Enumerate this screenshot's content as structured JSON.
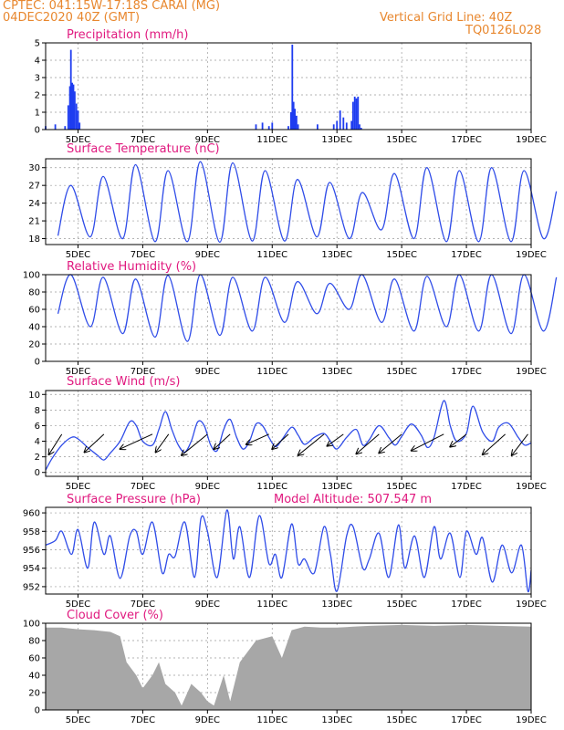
{
  "header": {
    "source_line": "CPTEC:   041:15W-17:18S   CARAI (MG)",
    "date_line": "04DEC2020 40Z (GMT)",
    "grid_line": "Vertical Grid Line: 40Z",
    "code": "TQ0126L028"
  },
  "colors": {
    "header": "#e8872e",
    "title": "#e0197f",
    "line": "#2f4ce8",
    "bar": "#1e3cf0",
    "cloud": "#a7a7a7",
    "arrow": "#000000"
  },
  "chart_data": [
    {
      "type": "bar",
      "title": "Precipitation (mm/h)",
      "xlabel": "",
      "ylabel": "",
      "ylim": [
        0,
        5
      ],
      "yticks": [
        0,
        1,
        2,
        3,
        4,
        5
      ],
      "x_ticks": [
        "5DEC",
        "7DEC",
        "9DEC",
        "11DEC",
        "13DEC",
        "15DEC",
        "17DEC",
        "19DEC"
      ],
      "x_range_days": [
        4.0,
        19.0
      ],
      "points": [
        [
          4.0,
          0.2
        ],
        [
          4.3,
          0.3
        ],
        [
          4.6,
          0.2
        ],
        [
          4.7,
          1.4
        ],
        [
          4.75,
          2.5
        ],
        [
          4.78,
          4.6
        ],
        [
          4.82,
          2.7
        ],
        [
          4.86,
          2.6
        ],
        [
          4.9,
          2.2
        ],
        [
          4.95,
          1.5
        ],
        [
          5.0,
          1.1
        ],
        [
          5.05,
          0.4
        ],
        [
          10.5,
          0.3
        ],
        [
          10.7,
          0.4
        ],
        [
          10.9,
          0.2
        ],
        [
          11.0,
          0.4
        ],
        [
          11.5,
          0.2
        ],
        [
          11.58,
          1.0
        ],
        [
          11.62,
          4.9
        ],
        [
          11.66,
          1.6
        ],
        [
          11.7,
          1.2
        ],
        [
          11.75,
          0.8
        ],
        [
          11.8,
          0.3
        ],
        [
          12.4,
          0.3
        ],
        [
          12.9,
          0.3
        ],
        [
          13.0,
          0.5
        ],
        [
          13.1,
          1.1
        ],
        [
          13.2,
          0.7
        ],
        [
          13.3,
          0.4
        ],
        [
          13.45,
          0.5
        ],
        [
          13.5,
          1.6
        ],
        [
          13.55,
          1.9
        ],
        [
          13.6,
          1.8
        ],
        [
          13.65,
          1.9
        ],
        [
          13.7,
          0.3
        ],
        [
          13.75,
          0.1
        ]
      ]
    },
    {
      "type": "line",
      "title": "Surface Temperature (nC)",
      "xlabel": "",
      "ylabel": "",
      "ylim": [
        17,
        31.5
      ],
      "yticks": [
        18,
        21,
        24,
        27,
        30
      ],
      "x_ticks": [
        "5DEC",
        "7DEC",
        "9DEC",
        "11DEC",
        "13DEC",
        "15DEC",
        "17DEC",
        "19DEC"
      ],
      "x_range_days": [
        4.0,
        19.0
      ],
      "daily_min": [
        18.5,
        18.3,
        18.0,
        17.5,
        17.5,
        17.4,
        17.6,
        17.6,
        18.3,
        18.0,
        19.5,
        18.0,
        17.5,
        17.5,
        17.5,
        18.0
      ],
      "daily_max": [
        27.0,
        28.5,
        30.5,
        29.5,
        31.0,
        30.8,
        29.5,
        28.0,
        27.5,
        25.8,
        29.0,
        30.0,
        29.5,
        30.0,
        29.5,
        26.0
      ]
    },
    {
      "type": "line",
      "title": "Relative Humidity (%)",
      "xlabel": "",
      "ylabel": "",
      "ylim": [
        0,
        100
      ],
      "yticks": [
        0,
        20,
        40,
        60,
        80,
        100
      ],
      "x_ticks": [
        "5DEC",
        "7DEC",
        "9DEC",
        "11DEC",
        "13DEC",
        "15DEC",
        "17DEC",
        "19DEC"
      ],
      "x_range_days": [
        4.0,
        19.0
      ],
      "daily_min": [
        55,
        40,
        32,
        28,
        23,
        30,
        35,
        45,
        55,
        60,
        45,
        35,
        40,
        35,
        32,
        35
      ],
      "daily_max": [
        100,
        97,
        95,
        99,
        100,
        97,
        97,
        92,
        90,
        100,
        95,
        98,
        100,
        100,
        100,
        97
      ]
    },
    {
      "type": "line",
      "title": "Surface Wind (m/s)",
      "xlabel": "",
      "ylabel": "",
      "ylim": [
        -0.5,
        10.5
      ],
      "yticks": [
        0,
        2,
        4,
        6,
        8,
        10
      ],
      "x_ticks": [
        "5DEC",
        "7DEC",
        "9DEC",
        "11DEC",
        "13DEC",
        "15DEC",
        "17DEC",
        "19DEC"
      ],
      "x_range_days": [
        4.0,
        19.0
      ],
      "speed": [
        [
          4.0,
          0.3
        ],
        [
          4.2,
          1.8
        ],
        [
          4.5,
          3.5
        ],
        [
          4.8,
          4.5
        ],
        [
          5.0,
          4.3
        ],
        [
          5.3,
          3.2
        ],
        [
          5.6,
          2.2
        ],
        [
          5.8,
          1.6
        ],
        [
          6.0,
          2.5
        ],
        [
          6.3,
          4.0
        ],
        [
          6.6,
          6.5
        ],
        [
          6.8,
          6.0
        ],
        [
          7.0,
          4.0
        ],
        [
          7.3,
          3.5
        ],
        [
          7.5,
          5.5
        ],
        [
          7.7,
          7.8
        ],
        [
          7.9,
          5.5
        ],
        [
          8.1,
          3.5
        ],
        [
          8.3,
          2.6
        ],
        [
          8.5,
          4.0
        ],
        [
          8.7,
          6.5
        ],
        [
          8.9,
          6.0
        ],
        [
          9.1,
          3.5
        ],
        [
          9.3,
          2.8
        ],
        [
          9.5,
          5.5
        ],
        [
          9.7,
          6.8
        ],
        [
          9.9,
          4.5
        ],
        [
          10.1,
          3.0
        ],
        [
          10.3,
          4.0
        ],
        [
          10.5,
          6.2
        ],
        [
          10.7,
          6.0
        ],
        [
          10.9,
          4.5
        ],
        [
          11.1,
          3.3
        ],
        [
          11.3,
          4.2
        ],
        [
          11.6,
          5.8
        ],
        [
          11.8,
          4.8
        ],
        [
          12.0,
          3.6
        ],
        [
          12.3,
          4.5
        ],
        [
          12.6,
          5.0
        ],
        [
          12.8,
          4.0
        ],
        [
          13.0,
          3.0
        ],
        [
          13.3,
          4.5
        ],
        [
          13.6,
          5.5
        ],
        [
          13.8,
          3.5
        ],
        [
          14.0,
          4.2
        ],
        [
          14.3,
          6.0
        ],
        [
          14.6,
          4.5
        ],
        [
          14.8,
          3.5
        ],
        [
          15.0,
          4.6
        ],
        [
          15.3,
          6.2
        ],
        [
          15.6,
          4.8
        ],
        [
          15.8,
          3.2
        ],
        [
          16.0,
          4.5
        ],
        [
          16.3,
          9.2
        ],
        [
          16.5,
          6.0
        ],
        [
          16.7,
          4.0
        ],
        [
          17.0,
          5.0
        ],
        [
          17.2,
          8.5
        ],
        [
          17.5,
          5.2
        ],
        [
          17.8,
          4.0
        ],
        [
          18.0,
          5.8
        ],
        [
          18.3,
          6.3
        ],
        [
          18.6,
          4.5
        ],
        [
          18.8,
          3.5
        ],
        [
          19.0,
          3.8
        ]
      ],
      "wind_arrows_from_to": [
        [
          4.5,
          4.9,
          4.1,
          2.3
        ],
        [
          5.8,
          4.9,
          5.2,
          2.6
        ],
        [
          7.3,
          4.9,
          6.3,
          3.0
        ],
        [
          7.8,
          4.9,
          7.4,
          2.6
        ],
        [
          9.0,
          4.9,
          8.2,
          2.2
        ],
        [
          9.7,
          4.9,
          9.2,
          3.0
        ],
        [
          10.9,
          4.9,
          10.2,
          3.6
        ],
        [
          11.5,
          4.9,
          11.0,
          3.0
        ],
        [
          12.6,
          4.9,
          11.8,
          2.2
        ],
        [
          13.2,
          4.9,
          12.7,
          3.4
        ],
        [
          14.3,
          4.9,
          13.6,
          2.4
        ],
        [
          15.0,
          4.9,
          14.3,
          2.5
        ],
        [
          16.3,
          4.9,
          15.3,
          2.8
        ],
        [
          17.0,
          4.9,
          16.5,
          3.3
        ],
        [
          18.2,
          4.9,
          17.5,
          2.3
        ],
        [
          18.9,
          4.9,
          18.4,
          2.2
        ]
      ]
    },
    {
      "type": "line",
      "title": "Surface Pressure (hPa)",
      "annotation": "Model Altitude: 507.547 m",
      "xlabel": "",
      "ylabel": "",
      "ylim": [
        951.2,
        960.6
      ],
      "yticks": [
        952,
        954,
        956,
        958,
        960
      ],
      "x_ticks": [
        "5DEC",
        "7DEC",
        "9DEC",
        "11DEC",
        "13DEC",
        "15DEC",
        "17DEC",
        "19DEC"
      ],
      "x_range_days": [
        4.0,
        19.0
      ],
      "points": [
        [
          4.0,
          956.5
        ],
        [
          4.3,
          957.0
        ],
        [
          4.5,
          958.0
        ],
        [
          4.8,
          955.5
        ],
        [
          5.0,
          958.2
        ],
        [
          5.3,
          954.0
        ],
        [
          5.5,
          959.0
        ],
        [
          5.8,
          955.5
        ],
        [
          6.0,
          957.5
        ],
        [
          6.3,
          952.9
        ],
        [
          6.6,
          957.5
        ],
        [
          6.8,
          958.0
        ],
        [
          7.0,
          955.5
        ],
        [
          7.3,
          959.0
        ],
        [
          7.6,
          953.5
        ],
        [
          7.8,
          955.5
        ],
        [
          8.0,
          955.3
        ],
        [
          8.3,
          959.0
        ],
        [
          8.6,
          953.0
        ],
        [
          8.8,
          959.4
        ],
        [
          9.0,
          958.0
        ],
        [
          9.3,
          953.0
        ],
        [
          9.6,
          960.3
        ],
        [
          9.8,
          955.0
        ],
        [
          10.0,
          958.5
        ],
        [
          10.3,
          953.0
        ],
        [
          10.6,
          959.7
        ],
        [
          10.9,
          954.5
        ],
        [
          11.1,
          955.5
        ],
        [
          11.3,
          953.0
        ],
        [
          11.6,
          958.8
        ],
        [
          11.8,
          954.5
        ],
        [
          12.0,
          955.0
        ],
        [
          12.3,
          953.5
        ],
        [
          12.6,
          958.5
        ],
        [
          12.8,
          955.5
        ],
        [
          13.0,
          951.5
        ],
        [
          13.3,
          957.5
        ],
        [
          13.5,
          958.5
        ],
        [
          13.8,
          954.0
        ],
        [
          14.0,
          955.0
        ],
        [
          14.3,
          957.8
        ],
        [
          14.6,
          953.0
        ],
        [
          14.9,
          958.7
        ],
        [
          15.1,
          954.0
        ],
        [
          15.4,
          957.5
        ],
        [
          15.7,
          953.0
        ],
        [
          16.0,
          958.5
        ],
        [
          16.2,
          955.0
        ],
        [
          16.5,
          957.8
        ],
        [
          16.8,
          953.0
        ],
        [
          17.0,
          958.0
        ],
        [
          17.3,
          955.5
        ],
        [
          17.5,
          957.3
        ],
        [
          17.8,
          952.5
        ],
        [
          18.1,
          956.5
        ],
        [
          18.4,
          953.5
        ],
        [
          18.7,
          956.5
        ],
        [
          18.9,
          951.5
        ],
        [
          19.0,
          953.8
        ]
      ]
    },
    {
      "type": "area",
      "title": "Cloud Cover (%)",
      "xlabel": "",
      "ylabel": "",
      "ylim": [
        0,
        100
      ],
      "yticks": [
        0,
        20,
        40,
        60,
        80,
        100
      ],
      "x_ticks": [
        "5DEC",
        "7DEC",
        "9DEC",
        "11DEC",
        "13DEC",
        "15DEC",
        "17DEC",
        "19DEC"
      ],
      "x_range_days": [
        4.0,
        19.0
      ],
      "points": [
        [
          4.0,
          95
        ],
        [
          4.5,
          95
        ],
        [
          5.0,
          93
        ],
        [
          5.5,
          92
        ],
        [
          6.0,
          90
        ],
        [
          6.3,
          85
        ],
        [
          6.5,
          55
        ],
        [
          6.8,
          40
        ],
        [
          7.0,
          25
        ],
        [
          7.3,
          40
        ],
        [
          7.5,
          55
        ],
        [
          7.7,
          30
        ],
        [
          8.0,
          20
        ],
        [
          8.2,
          5
        ],
        [
          8.5,
          30
        ],
        [
          8.8,
          20
        ],
        [
          9.0,
          10
        ],
        [
          9.2,
          5
        ],
        [
          9.5,
          40
        ],
        [
          9.7,
          10
        ],
        [
          10.0,
          55
        ],
        [
          10.5,
          80
        ],
        [
          11.0,
          85
        ],
        [
          11.3,
          60
        ],
        [
          11.6,
          92
        ],
        [
          12.0,
          96
        ],
        [
          12.5,
          95
        ],
        [
          13.0,
          95
        ],
        [
          13.5,
          96
        ],
        [
          14.0,
          97
        ],
        [
          15.0,
          98
        ],
        [
          16.0,
          97
        ],
        [
          17.0,
          98
        ],
        [
          18.0,
          97
        ],
        [
          19.0,
          96
        ]
      ]
    }
  ]
}
